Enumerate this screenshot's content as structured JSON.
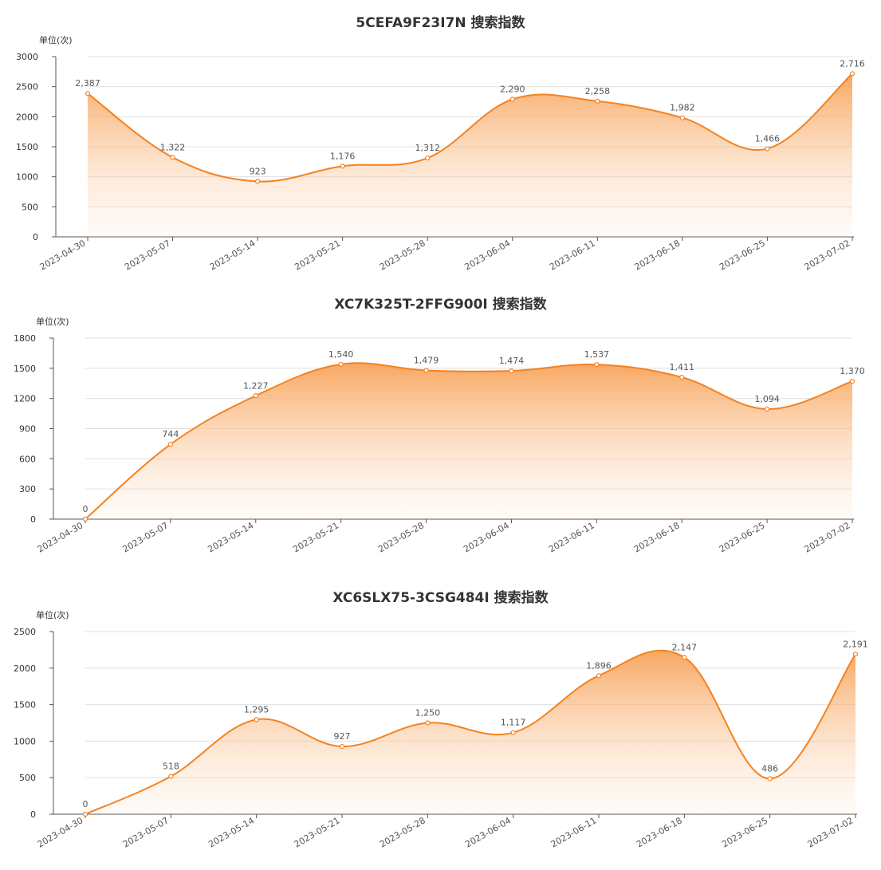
{
  "chart_data": [
    {
      "type": "area",
      "title": "5CEFA9F23I7N 搜索指数",
      "unit_label": "单位(次)",
      "categories": [
        "2023-04-30",
        "2023-05-07",
        "2023-05-14",
        "2023-05-21",
        "2023-05-28",
        "2023-06-04",
        "2023-06-11",
        "2023-06-18",
        "2023-06-25",
        "2023-07-02"
      ],
      "values": [
        2387,
        1322,
        923,
        1176,
        1312,
        2290,
        2258,
        1982,
        1466,
        2716
      ],
      "data_labels": [
        "2,387",
        "1,322",
        "923",
        "1,176",
        "1,312",
        "2,290",
        "2,258",
        "1,982",
        "1,466",
        "2,716"
      ],
      "yticks": [
        "0",
        "500",
        "1000",
        "1500",
        "2000",
        "2500",
        "3000"
      ],
      "ylim": [
        0,
        3000
      ],
      "grid": true,
      "legend": "none",
      "color": "#f5821f"
    },
    {
      "type": "area",
      "title": "XC7K325T-2FFG900I 搜索指数",
      "unit_label": "单位(次)",
      "categories": [
        "2023-04-30",
        "2023-05-07",
        "2023-05-14",
        "2023-05-21",
        "2023-05-28",
        "2023-06-04",
        "2023-06-11",
        "2023-06-18",
        "2023-06-25",
        "2023-07-02"
      ],
      "values": [
        0,
        744,
        1227,
        1540,
        1479,
        1474,
        1537,
        1411,
        1094,
        1370
      ],
      "data_labels": [
        "0",
        "744",
        "1,227",
        "1,540",
        "1,479",
        "1,474",
        "1,537",
        "1,411",
        "1,094",
        "1,370"
      ],
      "yticks": [
        "0",
        "300",
        "600",
        "900",
        "1200",
        "1500",
        "1800"
      ],
      "ylim": [
        0,
        1800
      ],
      "grid": true,
      "legend": "none",
      "color": "#f5821f"
    },
    {
      "type": "area",
      "title": "XC6SLX75-3CSG484I 搜索指数",
      "unit_label": "单位(次)",
      "categories": [
        "2023-04-30",
        "2023-05-07",
        "2023-05-14",
        "2023-05-21",
        "2023-05-28",
        "2023-06-04",
        "2023-06-11",
        "2023-06-18",
        "2023-06-25",
        "2023-07-02"
      ],
      "values": [
        0,
        518,
        1295,
        927,
        1250,
        1117,
        1896,
        2147,
        486,
        2191
      ],
      "data_labels": [
        "0",
        "518",
        "1,295",
        "927",
        "1,250",
        "1,117",
        "1,896",
        "2,147",
        "486",
        "2,191"
      ],
      "yticks": [
        "0",
        "500",
        "1000",
        "1500",
        "2000",
        "2500"
      ],
      "ylim": [
        0,
        2500
      ],
      "grid": true,
      "legend": "none",
      "color": "#f5821f"
    }
  ]
}
